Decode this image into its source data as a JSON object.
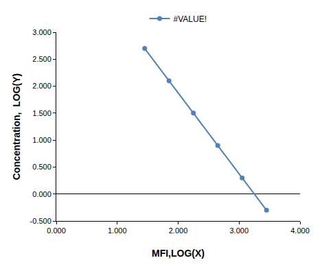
{
  "chart_data": {
    "type": "line",
    "x_label": "MFI,LOG(X)",
    "y_label": "Concentration,  LOG(Y)",
    "x": [
      1.45,
      1.85,
      2.25,
      2.65,
      3.05,
      3.45
    ],
    "series": [
      {
        "name": "#VALUE!",
        "color": "#4f81bd",
        "marker": "circle",
        "line_style": "solid",
        "values": [
          2.7,
          2.1,
          1.5,
          0.9,
          0.3,
          -0.3
        ]
      }
    ],
    "xlim": [
      0,
      4
    ],
    "xticks": [
      {
        "value": 0,
        "label": "0.000"
      },
      {
        "value": 1,
        "label": "1.000"
      },
      {
        "value": 2,
        "label": "2.000"
      },
      {
        "value": 3,
        "label": "3.000"
      },
      {
        "value": 4,
        "label": "4.000"
      }
    ],
    "ylim": [
      -0.5,
      3
    ],
    "yticks": [
      {
        "value": -0.5,
        "label": "-0.500"
      },
      {
        "value": 0,
        "label": "0.000"
      },
      {
        "value": 0.5,
        "label": "0.500"
      },
      {
        "value": 1,
        "label": "1.000"
      },
      {
        "value": 1.5,
        "label": "1.500"
      },
      {
        "value": 2,
        "label": "2.000"
      },
      {
        "value": 2.5,
        "label": "2.500"
      },
      {
        "value": 3,
        "label": "3.000"
      }
    ],
    "grid": false,
    "legend": "top"
  }
}
